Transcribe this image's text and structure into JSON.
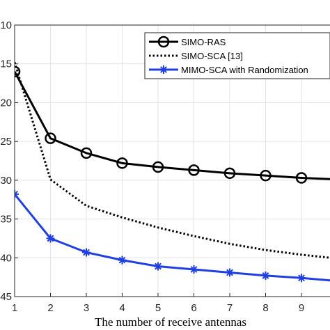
{
  "chart_data": {
    "type": "line",
    "title": "",
    "xlabel": "The number of receive antennas",
    "ylabel": "",
    "xlim": [
      1,
      10
    ],
    "ylim": [
      -45,
      -10
    ],
    "y_axis_reversed_display": true,
    "grid": true,
    "legend_placement": "top-right",
    "x_ticks": [
      1,
      2,
      3,
      4,
      5,
      6,
      7,
      8,
      9
    ],
    "y_ticks": [
      -10,
      -15,
      -20,
      -25,
      -30,
      -35,
      -40,
      -45
    ],
    "y_tick_labels": [
      "10",
      "15",
      "20",
      "25",
      "30",
      "35",
      "40",
      "45"
    ],
    "series": [
      {
        "name": "SIMO-RAS",
        "color": "#000000",
        "line_style": "solid",
        "marker": "circle",
        "x": [
          1,
          2,
          3,
          4,
          5,
          6,
          7,
          8,
          9,
          10
        ],
        "values": [
          -16.0,
          -24.6,
          -26.5,
          -27.8,
          -28.3,
          -28.7,
          -29.1,
          -29.4,
          -29.7,
          -29.9
        ]
      },
      {
        "name": "SIMO-SCA [13]",
        "color": "#000000",
        "line_style": "dotted",
        "marker": "none",
        "x": [
          1,
          2,
          3,
          4,
          5,
          6,
          7,
          8,
          9,
          10
        ],
        "values": [
          -14.8,
          -29.9,
          -33.3,
          -34.8,
          -36.1,
          -37.2,
          -38.2,
          -39.0,
          -39.6,
          -40.1
        ]
      },
      {
        "name": "MIMO-SCA with Randomization",
        "color": "#1f3fe0",
        "line_style": "solid",
        "marker": "asterisk",
        "x": [
          1,
          2,
          3,
          4,
          5,
          6,
          7,
          8,
          9,
          10
        ],
        "values": [
          -31.8,
          -37.5,
          -39.3,
          -40.3,
          -41.1,
          -41.5,
          -41.9,
          -42.3,
          -42.6,
          -43.0
        ]
      }
    ]
  }
}
